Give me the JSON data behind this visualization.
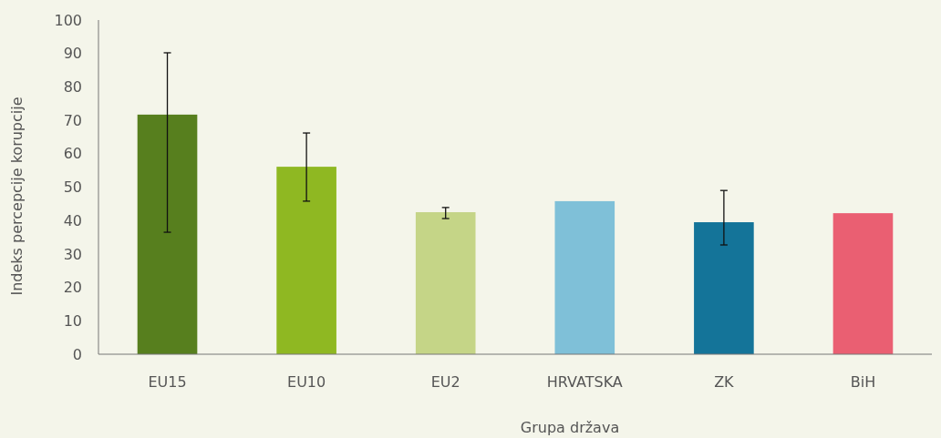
{
  "chart_data": {
    "type": "bar",
    "xlabel": "Grupa država",
    "ylabel": "Indeks percepcije korupcije",
    "categories": [
      "EU15",
      "EU10",
      "EU2",
      "HRVATSKA",
      "ZK",
      "BiH"
    ],
    "values": [
      71.7,
      56.1,
      42.5,
      45.8,
      39.5,
      42.2
    ],
    "colors": [
      "#577f1e",
      "#8fb822",
      "#c5d587",
      "#7fc0d8",
      "#147499",
      "#ea5f72"
    ],
    "errors": [
      [
        36.5,
        90.2
      ],
      [
        45.8,
        66.2
      ],
      [
        40.6,
        43.9
      ],
      null,
      [
        32.7,
        49
      ],
      null
    ],
    "ylim": [
      0,
      100
    ],
    "yticks": [
      0,
      10,
      20,
      30,
      40,
      50,
      60,
      70,
      80,
      90,
      100
    ],
    "grid": false
  }
}
